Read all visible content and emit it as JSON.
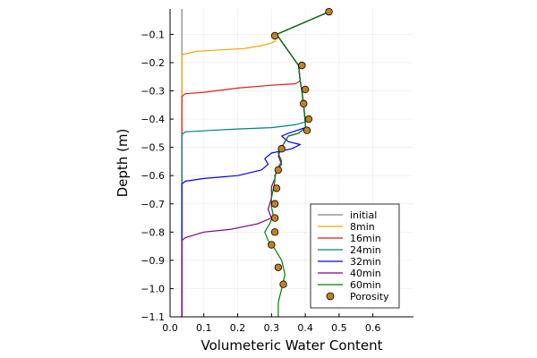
{
  "chart_data": {
    "type": "line",
    "title": "",
    "xlabel": "Volumeteric Water Content",
    "ylabel": "Depth (m)",
    "xlim": [
      0.0,
      0.72
    ],
    "ylim": [
      -1.1,
      -0.01
    ],
    "grid": true,
    "legend_position": "bottom-right",
    "x_ticks": [
      0.0,
      0.1,
      0.2,
      0.3,
      0.4,
      0.5,
      0.6
    ],
    "x_tick_labels": [
      "0.0",
      "0.1",
      "0.2",
      "0.3",
      "0.4",
      "0.5",
      "0.6"
    ],
    "y_ticks": [
      -0.1,
      -0.2,
      -0.3,
      -0.4,
      -0.5,
      -0.6,
      -0.7,
      -0.8,
      -0.9,
      -1.0,
      -1.1
    ],
    "y_tick_labels": [
      "−0.1",
      "−0.2",
      "−0.3",
      "−0.4",
      "−0.5",
      "−0.6",
      "−0.7",
      "−0.8",
      "−0.9",
      "−1.0",
      "−1.1"
    ],
    "series": [
      {
        "name": "initial",
        "color": "#808080",
        "kind": "line",
        "points": [
          [
            0.035,
            -0.01
          ],
          [
            0.035,
            -1.1
          ]
        ]
      },
      {
        "name": "8min",
        "color": "#f5a300",
        "kind": "line",
        "points": [
          [
            0.035,
            -1.1
          ],
          [
            0.035,
            -0.175
          ],
          [
            0.04,
            -0.17
          ],
          [
            0.08,
            -0.16
          ],
          [
            0.15,
            -0.155
          ],
          [
            0.22,
            -0.15
          ],
          [
            0.27,
            -0.14
          ],
          [
            0.3,
            -0.13
          ],
          [
            0.31,
            -0.125
          ],
          [
            0.315,
            -0.1
          ],
          [
            0.47,
            -0.02
          ]
        ]
      },
      {
        "name": "16min",
        "color": "#e31a1c",
        "kind": "line",
        "points": [
          [
            0.035,
            -1.1
          ],
          [
            0.035,
            -0.32
          ],
          [
            0.045,
            -0.31
          ],
          [
            0.1,
            -0.305
          ],
          [
            0.2,
            -0.29
          ],
          [
            0.3,
            -0.28
          ],
          [
            0.37,
            -0.275
          ],
          [
            0.385,
            -0.265
          ],
          [
            0.38,
            -0.21
          ],
          [
            0.315,
            -0.1
          ],
          [
            0.47,
            -0.02
          ]
        ]
      },
      {
        "name": "24min",
        "color": "#008080",
        "kind": "line",
        "points": [
          [
            0.035,
            -1.1
          ],
          [
            0.035,
            -0.455
          ],
          [
            0.045,
            -0.445
          ],
          [
            0.12,
            -0.44
          ],
          [
            0.2,
            -0.435
          ],
          [
            0.3,
            -0.43
          ],
          [
            0.37,
            -0.42
          ],
          [
            0.4,
            -0.41
          ],
          [
            0.395,
            -0.35
          ],
          [
            0.39,
            -0.3
          ],
          [
            0.385,
            -0.265
          ],
          [
            0.38,
            -0.21
          ],
          [
            0.315,
            -0.1
          ],
          [
            0.47,
            -0.02
          ]
        ]
      },
      {
        "name": "32min",
        "color": "#0000ff",
        "kind": "line",
        "points": [
          [
            0.035,
            -1.1
          ],
          [
            0.035,
            -0.63
          ],
          [
            0.045,
            -0.62
          ],
          [
            0.1,
            -0.61
          ],
          [
            0.2,
            -0.6
          ],
          [
            0.27,
            -0.58
          ],
          [
            0.29,
            -0.56
          ],
          [
            0.28,
            -0.54
          ],
          [
            0.3,
            -0.52
          ],
          [
            0.36,
            -0.505
          ],
          [
            0.385,
            -0.49
          ],
          [
            0.35,
            -0.48
          ],
          [
            0.33,
            -0.46
          ],
          [
            0.35,
            -0.45
          ],
          [
            0.4,
            -0.43
          ],
          [
            0.4,
            -0.41
          ],
          [
            0.395,
            -0.35
          ],
          [
            0.39,
            -0.3
          ],
          [
            0.385,
            -0.265
          ],
          [
            0.38,
            -0.21
          ],
          [
            0.315,
            -0.1
          ],
          [
            0.47,
            -0.02
          ]
        ]
      },
      {
        "name": "40min",
        "color": "#800080",
        "kind": "line",
        "points": [
          [
            0.035,
            -1.1
          ],
          [
            0.035,
            -0.83
          ],
          [
            0.045,
            -0.82
          ],
          [
            0.1,
            -0.8
          ],
          [
            0.18,
            -0.79
          ],
          [
            0.26,
            -0.77
          ],
          [
            0.3,
            -0.75
          ],
          [
            0.29,
            -0.72
          ],
          [
            0.3,
            -0.68
          ],
          [
            0.3,
            -0.64
          ],
          [
            0.31,
            -0.61
          ],
          [
            0.315,
            -0.58
          ],
          [
            0.33,
            -0.56
          ],
          [
            0.32,
            -0.53
          ],
          [
            0.33,
            -0.5
          ],
          [
            0.34,
            -0.48
          ],
          [
            0.35,
            -0.46
          ],
          [
            0.38,
            -0.45
          ],
          [
            0.4,
            -0.43
          ],
          [
            0.4,
            -0.41
          ],
          [
            0.395,
            -0.35
          ],
          [
            0.39,
            -0.3
          ],
          [
            0.385,
            -0.265
          ],
          [
            0.38,
            -0.21
          ],
          [
            0.315,
            -0.1
          ],
          [
            0.47,
            -0.02
          ]
        ]
      },
      {
        "name": "60min",
        "color": "#008000",
        "kind": "line",
        "points": [
          [
            0.32,
            -1.1
          ],
          [
            0.32,
            -1.05
          ],
          [
            0.33,
            -1.0
          ],
          [
            0.34,
            -0.95
          ],
          [
            0.33,
            -0.9
          ],
          [
            0.31,
            -0.86
          ],
          [
            0.29,
            -0.83
          ],
          [
            0.28,
            -0.8
          ],
          [
            0.295,
            -0.77
          ],
          [
            0.305,
            -0.74
          ],
          [
            0.3,
            -0.71
          ],
          [
            0.3,
            -0.68
          ],
          [
            0.305,
            -0.65
          ],
          [
            0.31,
            -0.62
          ],
          [
            0.31,
            -0.6
          ],
          [
            0.32,
            -0.57
          ],
          [
            0.33,
            -0.55
          ],
          [
            0.32,
            -0.52
          ],
          [
            0.33,
            -0.5
          ],
          [
            0.34,
            -0.48
          ],
          [
            0.35,
            -0.46
          ],
          [
            0.38,
            -0.45
          ],
          [
            0.4,
            -0.43
          ],
          [
            0.4,
            -0.41
          ],
          [
            0.395,
            -0.35
          ],
          [
            0.39,
            -0.3
          ],
          [
            0.385,
            -0.265
          ],
          [
            0.38,
            -0.21
          ],
          [
            0.315,
            -0.1
          ],
          [
            0.47,
            -0.02
          ]
        ]
      },
      {
        "name": "Porosity",
        "color": "#c57f22",
        "kind": "scatter",
        "points": [
          [
            0.47,
            -0.02
          ],
          [
            0.31,
            -0.105
          ],
          [
            0.39,
            -0.21
          ],
          [
            0.4,
            -0.295
          ],
          [
            0.395,
            -0.345
          ],
          [
            0.41,
            -0.4
          ],
          [
            0.405,
            -0.44
          ],
          [
            0.33,
            -0.505
          ],
          [
            0.32,
            -0.58
          ],
          [
            0.315,
            -0.645
          ],
          [
            0.31,
            -0.7
          ],
          [
            0.31,
            -0.75
          ],
          [
            0.31,
            -0.8
          ],
          [
            0.3,
            -0.845
          ],
          [
            0.32,
            -0.925
          ],
          [
            0.335,
            -0.985
          ]
        ]
      }
    ]
  }
}
